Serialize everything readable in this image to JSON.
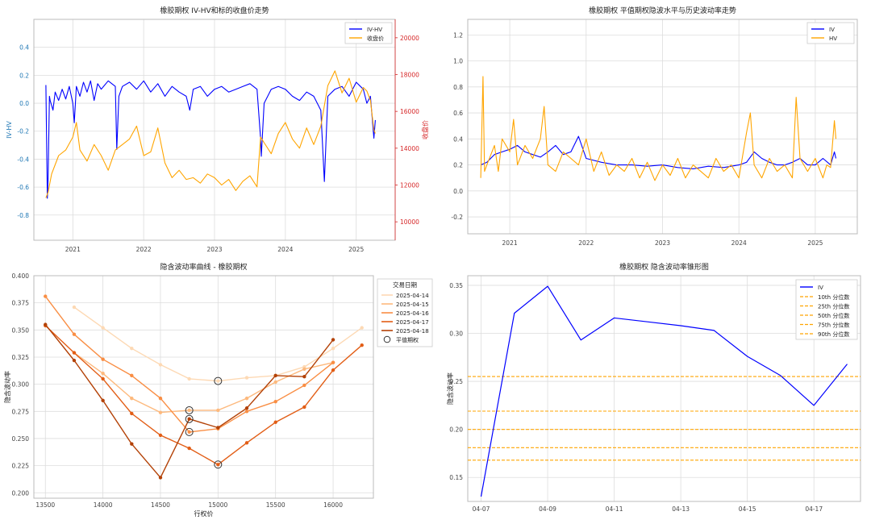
{
  "charts": [
    {
      "id": "c1",
      "type": "line",
      "title": "橡胶期权 IV-HV和标的收盘价走势",
      "xlabel": "",
      "ylabel": "IV-HV",
      "y2label": "收盘价",
      "xticks": [
        "2021",
        "2022",
        "2023",
        "2024",
        "2025"
      ],
      "xlim": [
        2020.45,
        2025.55
      ],
      "ylim": [
        -0.98,
        0.6
      ],
      "yticks": [
        -0.8,
        -0.6,
        -0.4,
        -0.2,
        0.0,
        0.2,
        0.4
      ],
      "y2lim": [
        9000,
        21000
      ],
      "y2ticks": [
        10000,
        12000,
        14000,
        16000,
        18000,
        20000
      ],
      "legend": [
        "IV-HV",
        "收盘价"
      ],
      "legend_position": "top-right",
      "series": [
        {
          "name": "IV-HV",
          "axis": "left",
          "color": "#0000ff",
          "x": [
            2020.62,
            2020.64,
            2020.65,
            2020.67,
            2020.68,
            2020.72,
            2020.75,
            2020.8,
            2020.85,
            2020.9,
            2020.95,
            2021.0,
            2021.02,
            2021.05,
            2021.1,
            2021.15,
            2021.2,
            2021.25,
            2021.3,
            2021.35,
            2021.4,
            2021.5,
            2021.6,
            2021.62,
            2021.65,
            2021.7,
            2021.8,
            2021.9,
            2022.0,
            2022.1,
            2022.2,
            2022.3,
            2022.4,
            2022.5,
            2022.6,
            2022.65,
            2022.7,
            2022.8,
            2022.9,
            2023.0,
            2023.1,
            2023.2,
            2023.3,
            2023.4,
            2023.5,
            2023.6,
            2023.65,
            2023.66,
            2023.7,
            2023.8,
            2023.9,
            2024.0,
            2024.1,
            2024.2,
            2024.3,
            2024.4,
            2024.5,
            2024.55,
            2024.6,
            2024.7,
            2024.8,
            2024.9,
            2025.0,
            2025.1,
            2025.15,
            2025.2,
            2025.25,
            2025.27
          ],
          "y": [
            0.13,
            -0.68,
            -0.55,
            0.05,
            0.02,
            -0.05,
            0.08,
            0.02,
            0.1,
            0.03,
            0.12,
            0.0,
            -0.14,
            0.12,
            0.05,
            0.15,
            0.08,
            0.16,
            0.02,
            0.14,
            0.1,
            0.16,
            0.12,
            -0.33,
            0.05,
            0.12,
            0.15,
            0.1,
            0.16,
            0.08,
            0.14,
            0.05,
            0.12,
            0.08,
            0.05,
            -0.05,
            0.1,
            0.12,
            0.05,
            0.1,
            0.12,
            0.08,
            0.1,
            0.12,
            0.14,
            0.1,
            -0.25,
            -0.38,
            0.0,
            0.1,
            0.12,
            0.1,
            0.05,
            0.02,
            0.08,
            0.05,
            -0.05,
            -0.56,
            0.05,
            0.1,
            0.12,
            0.05,
            0.15,
            0.1,
            0.0,
            0.05,
            -0.25,
            -0.12
          ]
        },
        {
          "name": "收盘价",
          "axis": "right",
          "color": "#ffa500",
          "x": [
            2020.62,
            2020.65,
            2020.7,
            2020.8,
            2020.9,
            2021.0,
            2021.05,
            2021.1,
            2021.2,
            2021.3,
            2021.4,
            2021.5,
            2021.6,
            2021.7,
            2021.8,
            2021.9,
            2022.0,
            2022.1,
            2022.2,
            2022.3,
            2022.4,
            2022.5,
            2022.6,
            2022.7,
            2022.8,
            2022.9,
            2023.0,
            2023.1,
            2023.2,
            2023.3,
            2023.4,
            2023.5,
            2023.6,
            2023.65,
            2023.7,
            2023.8,
            2023.9,
            2024.0,
            2024.1,
            2024.2,
            2024.3,
            2024.4,
            2024.5,
            2024.6,
            2024.7,
            2024.75,
            2024.8,
            2024.9,
            2025.0,
            2025.1,
            2025.15,
            2025.2,
            2025.25,
            2025.27
          ],
          "y": [
            11300,
            11600,
            12600,
            13600,
            13900,
            14600,
            15400,
            13900,
            13300,
            14200,
            13600,
            12800,
            13900,
            14200,
            14500,
            15200,
            13600,
            13800,
            15100,
            13200,
            12400,
            12800,
            12300,
            12400,
            12100,
            12600,
            12400,
            12000,
            12300,
            11700,
            12200,
            12500,
            11900,
            14600,
            14300,
            13700,
            14800,
            15400,
            14500,
            14000,
            15100,
            14200,
            15200,
            17400,
            18200,
            17600,
            17000,
            17800,
            16500,
            17300,
            17100,
            16600,
            15000,
            14800
          ]
        }
      ]
    },
    {
      "id": "c2",
      "type": "line",
      "title": "橡胶期权 平值期权隐波水平与历史波动率走势",
      "xlabel": "",
      "ylabel": "",
      "xticks": [
        "2021",
        "2022",
        "2023",
        "2024",
        "2025"
      ],
      "xlim": [
        2020.45,
        2025.55
      ],
      "ylim": [
        -0.33,
        1.32
      ],
      "yticks": [
        -0.2,
        0.0,
        0.2,
        0.4,
        0.6,
        0.8,
        1.0,
        1.2
      ],
      "legend": [
        "IV",
        "HV"
      ],
      "legend_position": "top-right",
      "series": [
        {
          "name": "IV",
          "color": "#0000ff",
          "x": [
            2020.62,
            2020.7,
            2020.8,
            2020.9,
            2021.0,
            2021.1,
            2021.2,
            2021.3,
            2021.4,
            2021.5,
            2021.6,
            2021.7,
            2021.8,
            2021.9,
            2022.0,
            2022.2,
            2022.4,
            2022.6,
            2022.8,
            2023.0,
            2023.2,
            2023.4,
            2023.6,
            2023.8,
            2024.0,
            2024.1,
            2024.2,
            2024.3,
            2024.4,
            2024.5,
            2024.6,
            2024.7,
            2024.8,
            2024.9,
            2025.0,
            2025.1,
            2025.2,
            2025.25,
            2025.27
          ],
          "y": [
            0.2,
            0.22,
            0.28,
            0.3,
            0.32,
            0.35,
            0.3,
            0.28,
            0.26,
            0.3,
            0.35,
            0.28,
            0.3,
            0.42,
            0.25,
            0.22,
            0.2,
            0.2,
            0.19,
            0.2,
            0.18,
            0.17,
            0.19,
            0.18,
            0.2,
            0.22,
            0.3,
            0.25,
            0.22,
            0.2,
            0.2,
            0.22,
            0.25,
            0.2,
            0.2,
            0.25,
            0.2,
            0.3,
            0.25
          ]
        },
        {
          "name": "HV",
          "color": "#ffa500",
          "x": [
            2020.62,
            2020.65,
            2020.67,
            2020.7,
            2020.8,
            2020.85,
            2020.9,
            2021.0,
            2021.05,
            2021.1,
            2021.2,
            2021.3,
            2021.4,
            2021.45,
            2021.5,
            2021.6,
            2021.7,
            2021.8,
            2021.9,
            2022.0,
            2022.1,
            2022.2,
            2022.3,
            2022.4,
            2022.5,
            2022.6,
            2022.7,
            2022.8,
            2022.9,
            2023.0,
            2023.1,
            2023.2,
            2023.3,
            2023.4,
            2023.5,
            2023.6,
            2023.7,
            2023.8,
            2023.9,
            2024.0,
            2024.1,
            2024.15,
            2024.2,
            2024.3,
            2024.4,
            2024.5,
            2024.6,
            2024.7,
            2024.75,
            2024.8,
            2024.9,
            2025.0,
            2025.1,
            2025.15,
            2025.2,
            2025.25,
            2025.27
          ],
          "y": [
            0.1,
            0.88,
            0.15,
            0.2,
            0.35,
            0.15,
            0.4,
            0.3,
            0.55,
            0.2,
            0.35,
            0.25,
            0.4,
            0.65,
            0.2,
            0.15,
            0.3,
            0.25,
            0.2,
            0.4,
            0.15,
            0.3,
            0.12,
            0.2,
            0.15,
            0.25,
            0.1,
            0.22,
            0.08,
            0.2,
            0.12,
            0.25,
            0.1,
            0.2,
            0.15,
            0.1,
            0.25,
            0.15,
            0.2,
            0.1,
            0.45,
            0.6,
            0.2,
            0.1,
            0.25,
            0.15,
            0.2,
            0.1,
            0.72,
            0.25,
            0.15,
            0.25,
            0.1,
            0.2,
            0.18,
            0.54,
            0.4
          ]
        }
      ]
    },
    {
      "id": "c3",
      "type": "line",
      "title": "隐含波动率曲线 - 橡胶期权",
      "xlabel": "行权价",
      "ylabel": "隐含波动率",
      "xlim": [
        13400,
        16350
      ],
      "ylim": [
        0.195,
        0.4
      ],
      "xticks": [
        13500,
        14000,
        14500,
        15000,
        15500,
        16000
      ],
      "yticks": [
        0.2,
        0.225,
        0.25,
        0.275,
        0.3,
        0.325,
        0.35,
        0.375,
        0.4
      ],
      "legend_title": "交易日期",
      "legend_position": "outside-right",
      "atm_label": "平值期权",
      "series": [
        {
          "name": "2025-04-14",
          "color": "#fdd9b4",
          "x": [
            13750,
            14000,
            14250,
            14500,
            14750,
            15000,
            15250,
            15500,
            15750,
            16000,
            16250
          ],
          "y": [
            0.371,
            0.352,
            0.333,
            0.318,
            0.305,
            0.303,
            0.306,
            0.308,
            0.316,
            0.333,
            0.352
          ]
        },
        {
          "name": "2025-04-15",
          "color": "#fdb97d",
          "x": [
            13750,
            14000,
            14250,
            14500,
            14750,
            15000,
            15250,
            15500,
            15750,
            16000
          ],
          "y": [
            0.329,
            0.31,
            0.287,
            0.274,
            0.276,
            0.276,
            0.287,
            0.302,
            0.314,
            0.32
          ]
        },
        {
          "name": "2025-04-16",
          "color": "#f98e44",
          "x": [
            13500,
            13750,
            14000,
            14250,
            14500,
            14750,
            15000,
            15250,
            15500,
            15750,
            16000
          ],
          "y": [
            0.381,
            0.346,
            0.323,
            0.308,
            0.287,
            0.256,
            0.259,
            0.275,
            0.284,
            0.299,
            0.32
          ]
        },
        {
          "name": "2025-04-17",
          "color": "#e25d15",
          "x": [
            13500,
            13750,
            14000,
            14250,
            14500,
            14750,
            15000,
            15250,
            15500,
            15750,
            16000,
            16250
          ],
          "y": [
            0.354,
            0.329,
            0.305,
            0.273,
            0.253,
            0.241,
            0.226,
            0.246,
            0.265,
            0.279,
            0.313,
            0.336
          ]
        },
        {
          "name": "2025-04-18",
          "color": "#b34106",
          "x": [
            13500,
            13750,
            14000,
            14250,
            14500,
            14750,
            15000,
            15250,
            15500,
            15750,
            16000
          ],
          "y": [
            0.355,
            0.322,
            0.285,
            0.245,
            0.214,
            0.268,
            0.26,
            0.278,
            0.308,
            0.307,
            0.341
          ]
        }
      ],
      "atm_points": [
        {
          "x": 15000,
          "y": 0.303
        },
        {
          "x": 14750,
          "y": 0.276
        },
        {
          "x": 14750,
          "y": 0.256
        },
        {
          "x": 15000,
          "y": 0.226
        },
        {
          "x": 14750,
          "y": 0.268
        }
      ]
    },
    {
      "id": "c4",
      "type": "line",
      "title": "橡胶期权 隐含波动率锥形图",
      "xlabel": "",
      "ylabel": "隐含波动率",
      "xticks": [
        "04-07",
        "04-09",
        "04-11",
        "04-13",
        "04-15",
        "04-17"
      ],
      "tick_positions": [
        0,
        2,
        4,
        6,
        8,
        10
      ],
      "xlim": [
        -0.4,
        11.4
      ],
      "ylim": [
        0.125,
        0.36
      ],
      "yticks": [
        0.15,
        0.2,
        0.25,
        0.3,
        0.35
      ],
      "legend_position": "top-right",
      "series": [
        {
          "name": "IV",
          "color": "#0000ff",
          "x": [
            0,
            1,
            2,
            3,
            4,
            5,
            6,
            7,
            8,
            9,
            10,
            11
          ],
          "y": [
            0.13,
            0.321,
            0.349,
            0.293,
            0.316,
            0.312,
            0.308,
            0.303,
            0.276,
            0.256,
            0.225,
            0.268
          ]
        }
      ],
      "quantiles": [
        {
          "name": "10th 分位数",
          "value": 0.168,
          "color": "#ffa500"
        },
        {
          "name": "25th 分位数",
          "value": 0.181,
          "color": "#ffa500"
        },
        {
          "name": "50th 分位数",
          "value": 0.2,
          "color": "#ffa500"
        },
        {
          "name": "75th 分位数",
          "value": 0.219,
          "color": "#ffa500"
        },
        {
          "name": "90th 分位数",
          "value": 0.255,
          "color": "#ffa500"
        }
      ]
    }
  ]
}
